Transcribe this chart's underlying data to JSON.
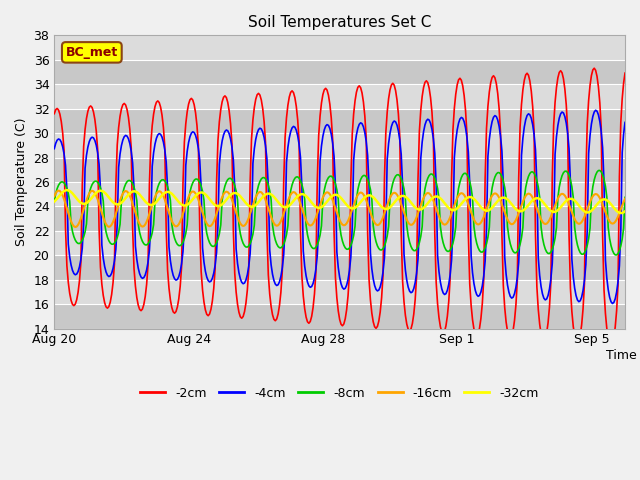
{
  "title": "Soil Temperatures Set C",
  "xlabel": "Time",
  "ylabel": "Soil Temperature (C)",
  "ylim": [
    14,
    38
  ],
  "xlim_days": [
    0,
    17
  ],
  "tick_positions_days": [
    0,
    4,
    8,
    12,
    16
  ],
  "tick_labels": [
    "Aug 20",
    "Aug 24",
    "Aug 28",
    "Sep 1",
    "Sep 5"
  ],
  "annotation_text": "BC_met",
  "annotation_bg": "#FFFF00",
  "annotation_border": "#8B4513",
  "line_colors": {
    "-2cm": "#FF0000",
    "-4cm": "#0000FF",
    "-8cm": "#00CC00",
    "-16cm": "#FFA500",
    "-32cm": "#FFFF00"
  },
  "line_widths": {
    "-2cm": 1.2,
    "-4cm": 1.2,
    "-8cm": 1.2,
    "-16cm": 1.5,
    "-32cm": 1.8
  },
  "legend_labels": [
    "-2cm",
    "-4cm",
    "-8cm",
    "-16cm",
    "-32cm"
  ],
  "plot_bg": "#DCDCDC",
  "fig_bg": "#F0F0F0",
  "title_fontsize": 11,
  "axis_fontsize": 9,
  "tick_fontsize": 9
}
